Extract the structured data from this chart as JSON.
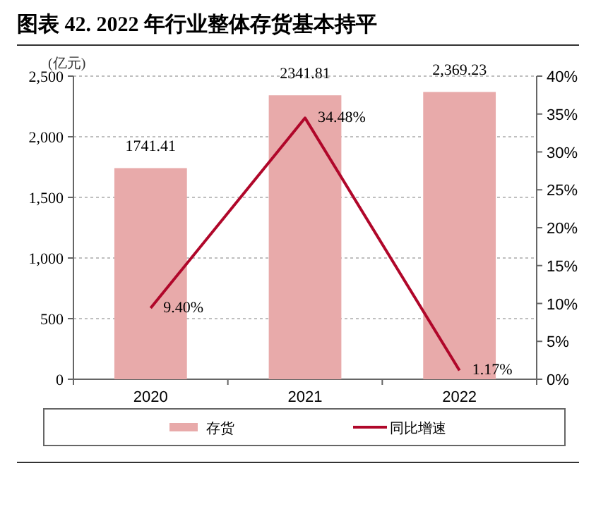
{
  "chart_data": {
    "type": "bar",
    "title": "图表 42. 2022 年行业整体存货基本持平",
    "ylabel": "(亿元)",
    "categories": [
      "2020",
      "2021",
      "2022"
    ],
    "series": [
      {
        "name": "存货",
        "color": "#e8aaaa",
        "values": [
          1741.41,
          2341.81,
          2369.23
        ],
        "value_labels": [
          "1741.41",
          "2341.81",
          "2,369.23"
        ]
      },
      {
        "name": "同比增速",
        "type": "line",
        "axis": "y2",
        "color": "#b0072a",
        "values": [
          9.4,
          34.48,
          1.17
        ],
        "value_labels": [
          "9.40%",
          "34.48%",
          "1.17%"
        ]
      }
    ],
    "ylim": [
      0,
      2500
    ],
    "yticks": [
      0,
      500,
      {
        "value": 1000,
        "label": "1,000"
      },
      {
        "value": 1500,
        "label": "1,500"
      },
      {
        "value": 2000,
        "label": "2,000"
      },
      {
        "value": 2500,
        "label": "2,500"
      }
    ],
    "y2lim": [
      0,
      40
    ],
    "y2ticks": [
      {
        "value": 0,
        "label": "0%"
      },
      {
        "value": 5,
        "label": "5%"
      },
      {
        "value": 10,
        "label": "10%"
      },
      {
        "value": 15,
        "label": "15%"
      },
      {
        "value": 20,
        "label": "20%"
      },
      {
        "value": 25,
        "label": "25%"
      },
      {
        "value": 30,
        "label": "30%"
      },
      {
        "value": 35,
        "label": "35%"
      },
      {
        "value": 40,
        "label": "40%"
      }
    ],
    "grid": "y",
    "legend": "bottom"
  }
}
